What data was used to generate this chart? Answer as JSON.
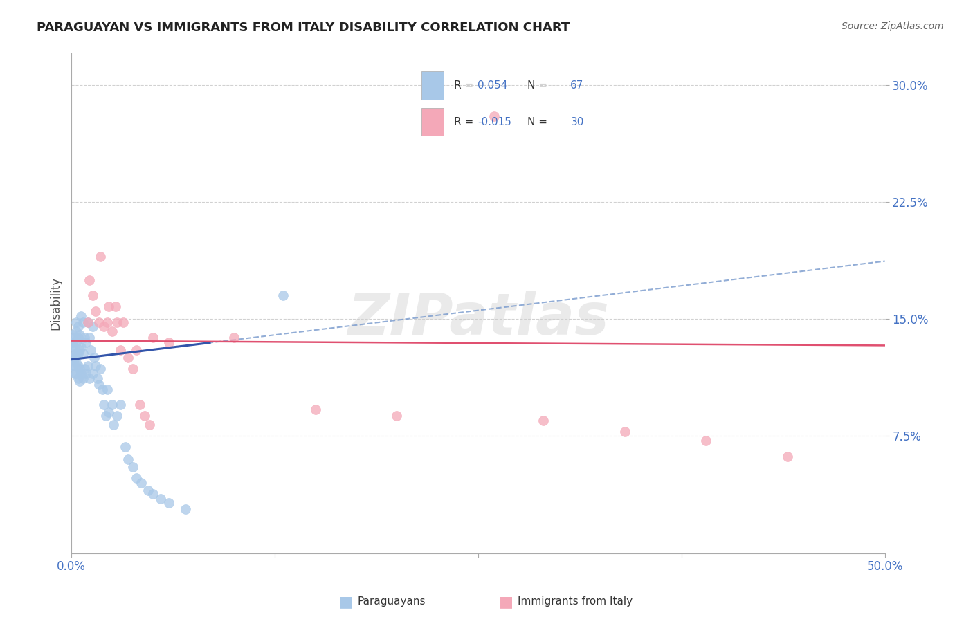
{
  "title": "PARAGUAYAN VS IMMIGRANTS FROM ITALY DISABILITY CORRELATION CHART",
  "source": "Source: ZipAtlas.com",
  "ylabel": "Disability",
  "ytick_labels": [
    "7.5%",
    "15.0%",
    "22.5%",
    "30.0%"
  ],
  "ytick_values": [
    0.075,
    0.15,
    0.225,
    0.3
  ],
  "xlim": [
    0.0,
    0.5
  ],
  "ylim": [
    0.0,
    0.32
  ],
  "r_paraguayan": 0.054,
  "n_paraguayan": 67,
  "r_italy": -0.015,
  "n_italy": 30,
  "color_paraguayan": "#a8c8e8",
  "color_italy": "#f4a8b8",
  "trendline_paraguayan_solid_color": "#3355aa",
  "trendline_paraguayan_dash_color": "#7799cc",
  "trendline_italy_color": "#e05070",
  "watermark": "ZIPatlas",
  "paraguayan_x": [
    0.001,
    0.001,
    0.001,
    0.001,
    0.001,
    0.002,
    0.002,
    0.002,
    0.002,
    0.002,
    0.003,
    0.003,
    0.003,
    0.003,
    0.003,
    0.003,
    0.004,
    0.004,
    0.004,
    0.004,
    0.004,
    0.005,
    0.005,
    0.005,
    0.005,
    0.006,
    0.006,
    0.006,
    0.007,
    0.007,
    0.007,
    0.008,
    0.008,
    0.009,
    0.009,
    0.01,
    0.01,
    0.011,
    0.011,
    0.012,
    0.013,
    0.013,
    0.014,
    0.015,
    0.016,
    0.017,
    0.018,
    0.019,
    0.02,
    0.021,
    0.022,
    0.023,
    0.025,
    0.026,
    0.028,
    0.03,
    0.033,
    0.035,
    0.038,
    0.04,
    0.043,
    0.047,
    0.05,
    0.055,
    0.06,
    0.07,
    0.13
  ],
  "paraguayan_y": [
    0.14,
    0.135,
    0.13,
    0.125,
    0.12,
    0.138,
    0.132,
    0.125,
    0.12,
    0.115,
    0.148,
    0.142,
    0.135,
    0.128,
    0.122,
    0.115,
    0.145,
    0.138,
    0.128,
    0.12,
    0.112,
    0.14,
    0.13,
    0.118,
    0.11,
    0.152,
    0.132,
    0.115,
    0.148,
    0.128,
    0.112,
    0.138,
    0.118,
    0.135,
    0.115,
    0.148,
    0.12,
    0.138,
    0.112,
    0.13,
    0.145,
    0.115,
    0.125,
    0.12,
    0.112,
    0.108,
    0.118,
    0.105,
    0.095,
    0.088,
    0.105,
    0.09,
    0.095,
    0.082,
    0.088,
    0.095,
    0.068,
    0.06,
    0.055,
    0.048,
    0.045,
    0.04,
    0.038,
    0.035,
    0.032,
    0.028,
    0.165
  ],
  "italy_x": [
    0.01,
    0.011,
    0.013,
    0.015,
    0.017,
    0.018,
    0.02,
    0.022,
    0.023,
    0.025,
    0.027,
    0.028,
    0.03,
    0.032,
    0.035,
    0.038,
    0.04,
    0.042,
    0.045,
    0.048,
    0.05,
    0.06,
    0.1,
    0.15,
    0.2,
    0.26,
    0.29,
    0.34,
    0.39,
    0.44
  ],
  "italy_y": [
    0.148,
    0.175,
    0.165,
    0.155,
    0.148,
    0.19,
    0.145,
    0.148,
    0.158,
    0.142,
    0.158,
    0.148,
    0.13,
    0.148,
    0.125,
    0.118,
    0.13,
    0.095,
    0.088,
    0.082,
    0.138,
    0.135,
    0.138,
    0.092,
    0.088,
    0.28,
    0.085,
    0.078,
    0.072,
    0.062
  ]
}
